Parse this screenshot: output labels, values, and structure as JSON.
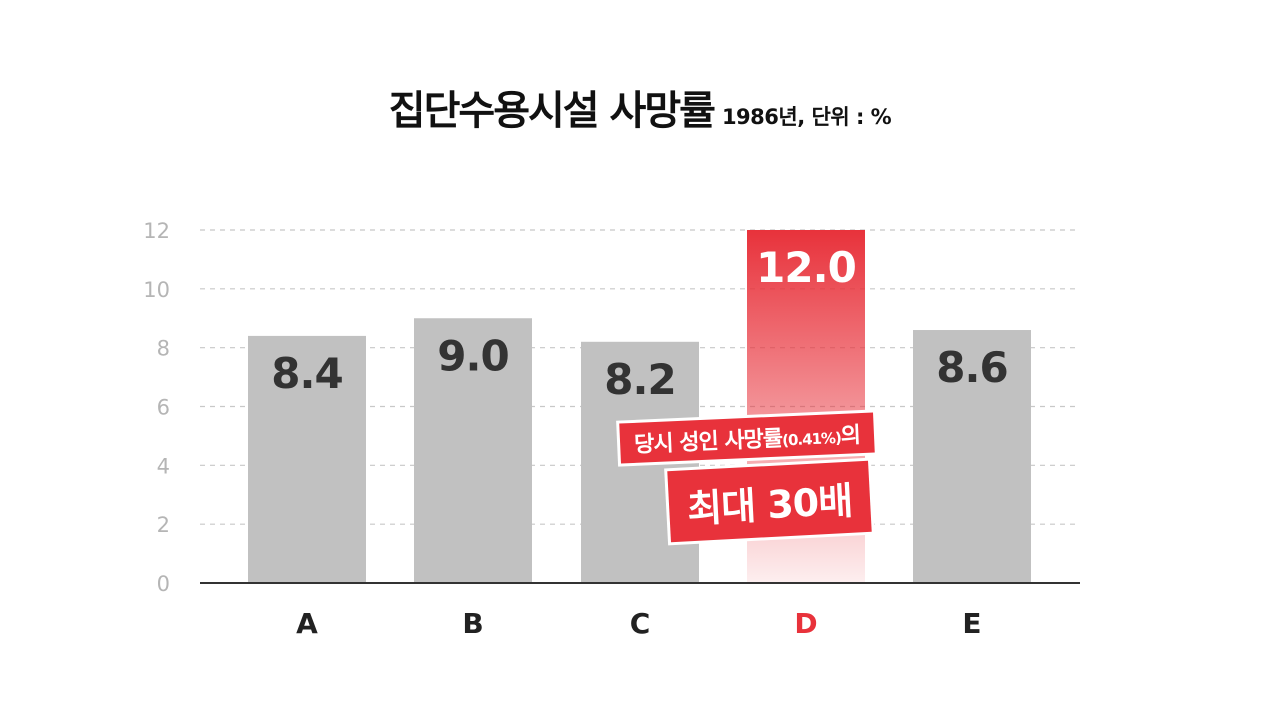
{
  "title": "집단수용시설 사망률",
  "subtitle": "1986년, 단위 : %",
  "callout": {
    "line1_main": "당시 성인 사망률",
    "line1_small": "(0.41%)",
    "line1_tail": "의",
    "line2": "최대 30배"
  },
  "colors": {
    "bar": "#c1c1c1",
    "highlight": "#e8323b",
    "grid": "#c8c8c8",
    "axis_tick_text": "#b5b5b5",
    "value_text": "#333333",
    "highlight_value_text": "#ffffff"
  },
  "chart_data": {
    "type": "bar",
    "categories": [
      "A",
      "B",
      "C",
      "D",
      "E"
    ],
    "values": [
      8.4,
      9.0,
      8.2,
      12.0,
      8.6
    ],
    "value_labels": [
      "8.4",
      "9.0",
      "8.2",
      "12.0",
      "8.6"
    ],
    "highlight": "D",
    "y_ticks": [
      "0",
      "2",
      "4",
      "6",
      "8",
      "10",
      "12"
    ],
    "ylim": [
      0,
      12
    ],
    "grid": true
  }
}
